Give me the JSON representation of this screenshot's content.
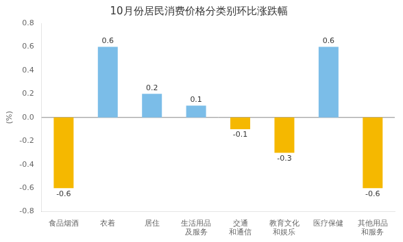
{
  "chart_data": {
    "type": "bar",
    "title": "10月份居民消费价格分类别环比涨跌幅",
    "ylabel": "(%)",
    "categories": [
      "食品烟酒",
      "衣着",
      "居住",
      "生活用品\n及服务",
      "交通\n和通信",
      "教育文化\n和娱乐",
      "医疗保健",
      "其他用品\n和服务"
    ],
    "values": [
      -0.6,
      0.6,
      0.2,
      0.1,
      -0.1,
      -0.3,
      0.6,
      -0.6
    ],
    "colors": [
      "#F5B800",
      "#7BBDE8",
      "#7BBDE8",
      "#7BBDE8",
      "#F5B800",
      "#F5B800",
      "#7BBDE8",
      "#F5B800"
    ],
    "ylim": [
      -0.8,
      0.8
    ],
    "yticks": [
      -0.8,
      -0.6,
      -0.4,
      -0.2,
      {
        "value": 0.0,
        "label": "0.0"
      },
      0.2,
      0.4,
      0.6,
      0.8
    ],
    "grid": false,
    "data_labels": true
  }
}
